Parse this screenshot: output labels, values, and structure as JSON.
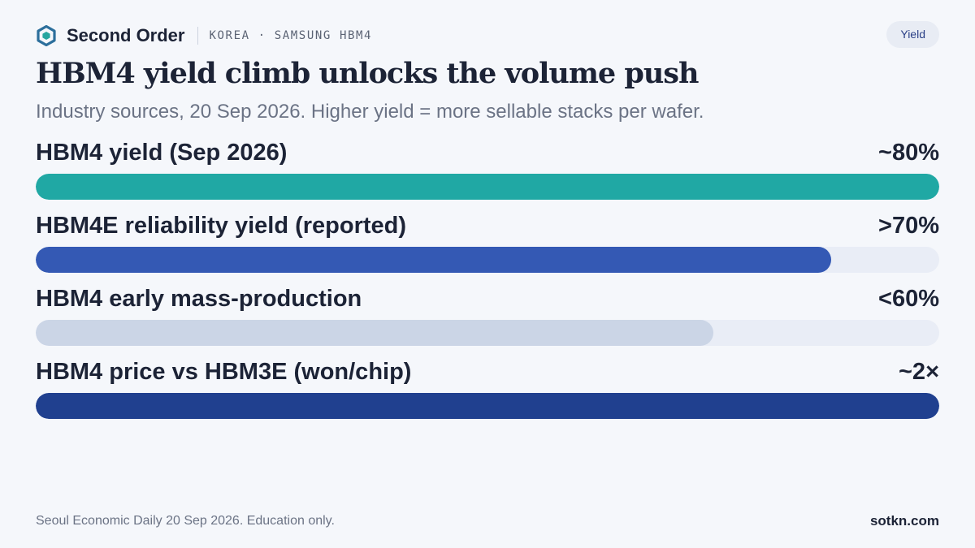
{
  "header": {
    "brand": "Second Order",
    "kicker": "KOREA · SAMSUNG HBM4",
    "tag": "Yield",
    "logo_icon": "hexagon-logo-icon"
  },
  "title": "HBM4 yield climb unlocks the volume push",
  "subtitle": "Industry sources, 20 Sep 2026. Higher yield = more sellable stacks per wafer.",
  "colors": {
    "background": "#f5f7fb",
    "teal": "#20a8a4",
    "blue": "#3459b4",
    "pale": "#cbd5e6",
    "navy": "#20408f",
    "track": "#e9edf6"
  },
  "chart_data": {
    "type": "bar",
    "orientation": "horizontal",
    "categories": [
      "HBM4 yield (Sep 2026)",
      "HBM4E reliability yield (reported)",
      "HBM4 early mass-production",
      "HBM4 price vs HBM3E (won/chip)"
    ],
    "value_labels": [
      "~80%",
      ">70%",
      "<60%",
      "~2×"
    ],
    "values": [
      1.0,
      0.88,
      0.75,
      1.0
    ],
    "bar_colors": [
      "#20a8a4",
      "#3459b4",
      "#cbd5e6",
      "#20408f"
    ],
    "xlim": [
      0,
      1
    ]
  },
  "footer": {
    "note": "Seoul Economic Daily 20 Sep 2026. Education only.",
    "site": "sotkn.com"
  }
}
